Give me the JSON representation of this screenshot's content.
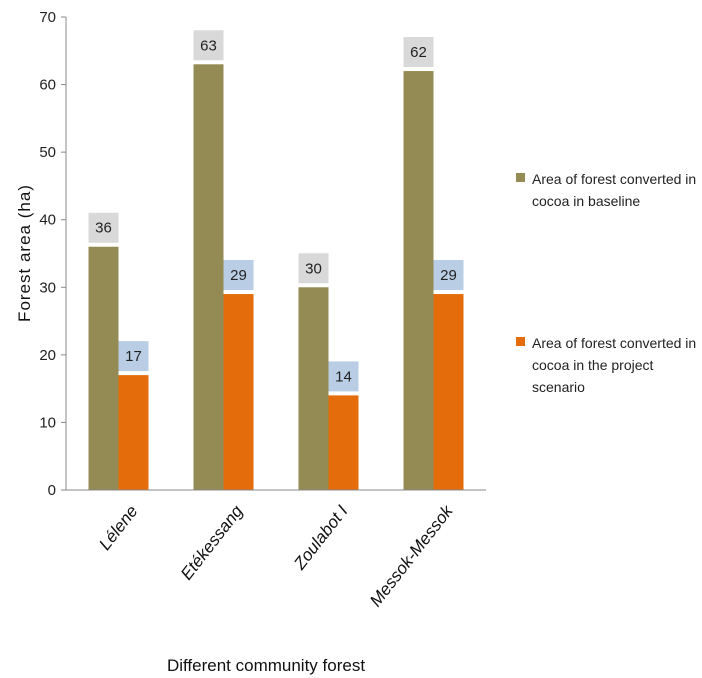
{
  "chart_data": {
    "type": "bar",
    "categories": [
      "Lélene",
      "Etékessang",
      "Zoulabot I",
      "Messok-Messok"
    ],
    "series": [
      {
        "name": "Area of forest converted in cocoa in baseline",
        "values": [
          36,
          63,
          30,
          62
        ],
        "color": "#948B54",
        "label_bg": "#D9D9D9"
      },
      {
        "name": "Area of forest converted in cocoa in the project scenario",
        "values": [
          17,
          29,
          14,
          29
        ],
        "color": "#E46C0A",
        "label_bg": "#B9CDE5"
      }
    ],
    "xlabel": "Different community forest",
    "ylabel": "Forest area (ha)",
    "ylim": [
      0,
      70
    ],
    "yticks": [
      0,
      10,
      20,
      30,
      40,
      50,
      60,
      70
    ],
    "grid": false,
    "legend": "right"
  }
}
